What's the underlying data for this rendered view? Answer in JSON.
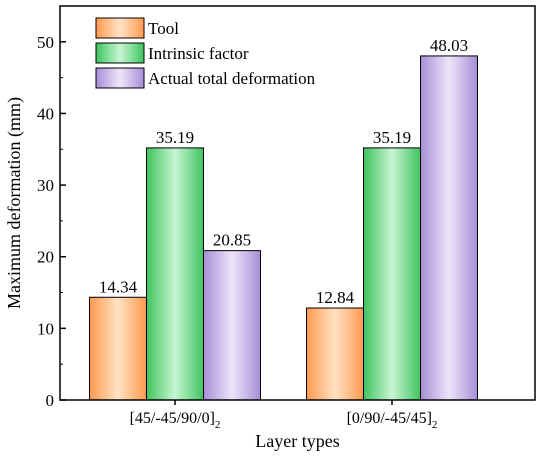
{
  "chart_data": {
    "type": "bar",
    "title": "",
    "xlabel": "Layer types",
    "ylabel": "Maximum deformation (mm)",
    "ylim": [
      0,
      55
    ],
    "yticks": [
      "0",
      "10",
      "20",
      "30",
      "40",
      "50"
    ],
    "categories": [
      {
        "base": "[45/-45/90/0]",
        "sub": "2"
      },
      {
        "base": "[0/90/-45/45]",
        "sub": "2"
      }
    ],
    "series": [
      {
        "name": "Tool",
        "values": [
          14.34,
          12.84
        ],
        "color": "#ff9a4d",
        "color_light": "#ffe2c4",
        "labels": [
          "14.34",
          "12.84"
        ]
      },
      {
        "name": "Intrinsic factor",
        "values": [
          35.19,
          35.19
        ],
        "color": "#3fc45f",
        "color_light": "#c8f5d2",
        "labels": [
          "35.19",
          "35.19"
        ]
      },
      {
        "name": "Actual total deformation",
        "values": [
          20.85,
          48.03
        ],
        "color": "#a68ed6",
        "color_light": "#eee5fb",
        "labels": [
          "20.85",
          "48.03"
        ]
      }
    ],
    "legend_position": "top-left",
    "grid": false
  }
}
